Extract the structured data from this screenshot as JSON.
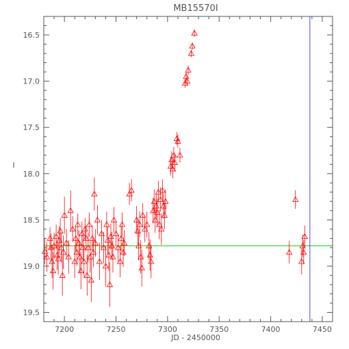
{
  "chart_data": {
    "type": "scatter",
    "title": "MB15570I",
    "xlabel": "JD - 2450000",
    "ylabel": "I",
    "xlim": [
      7180,
      7460
    ],
    "ylim": [
      19.6,
      16.3
    ],
    "y_inverted": true,
    "x_ticks": [
      7200,
      7250,
      7300,
      7350,
      7400,
      7450
    ],
    "y_ticks": [
      16.5,
      17.0,
      17.5,
      18.0,
      18.5,
      19.0,
      19.5
    ],
    "baseline_I": 18.78,
    "vertical_marker_jd": 7438,
    "marker": "triangle",
    "colors": {
      "points": "#ff0000",
      "baseline": "#00cc00",
      "vertical_marker": "#4444ff",
      "axes": "#555555"
    },
    "points": [
      [
        7181,
        18.84,
        0.14
      ],
      [
        7183,
        18.9,
        0.16
      ],
      [
        7186,
        18.7,
        0.12
      ],
      [
        7187,
        18.8,
        0.15
      ],
      [
        7188,
        18.95,
        0.18
      ],
      [
        7189,
        19.05,
        0.2
      ],
      [
        7190,
        18.78,
        0.14
      ],
      [
        7192,
        18.68,
        0.13
      ],
      [
        7193,
        18.88,
        0.16
      ],
      [
        7194,
        18.92,
        0.17
      ],
      [
        7195,
        18.72,
        0.15
      ],
      [
        7196,
        18.62,
        0.14
      ],
      [
        7197,
        18.8,
        0.16
      ],
      [
        7198,
        19.1,
        0.22
      ],
      [
        7199,
        18.85,
        0.18
      ],
      [
        7200,
        18.45,
        0.2
      ],
      [
        7202,
        18.75,
        0.15
      ],
      [
        7204,
        18.9,
        0.18
      ],
      [
        7206,
        18.4,
        0.22
      ],
      [
        7208,
        18.6,
        0.14
      ],
      [
        7210,
        18.95,
        0.18
      ],
      [
        7211,
        18.7,
        0.13
      ],
      [
        7212,
        18.85,
        0.15
      ],
      [
        7213,
        18.55,
        0.12
      ],
      [
        7214,
        18.75,
        0.14
      ],
      [
        7215,
        18.9,
        0.17
      ],
      [
        7216,
        19.05,
        0.2
      ],
      [
        7217,
        18.65,
        0.13
      ],
      [
        7218,
        18.8,
        0.15
      ],
      [
        7219,
        18.95,
        0.18
      ],
      [
        7220,
        18.6,
        0.12
      ],
      [
        7221,
        18.7,
        0.14
      ],
      [
        7222,
        19.1,
        0.22
      ],
      [
        7223,
        18.8,
        0.16
      ],
      [
        7224,
        18.55,
        0.13
      ],
      [
        7225,
        18.9,
        0.17
      ],
      [
        7226,
        19.15,
        0.24
      ],
      [
        7227,
        18.7,
        0.14
      ],
      [
        7228,
        18.85,
        0.16
      ],
      [
        7229,
        18.22,
        0.18
      ],
      [
        7230,
        18.75,
        0.15
      ],
      [
        7232,
        18.5,
        0.16
      ],
      [
        7234,
        18.95,
        0.2
      ],
      [
        7236,
        18.65,
        0.15
      ],
      [
        7238,
        18.8,
        0.17
      ],
      [
        7240,
        19.0,
        0.22
      ],
      [
        7241,
        18.55,
        0.14
      ],
      [
        7242,
        18.72,
        0.15
      ],
      [
        7243,
        18.88,
        0.17
      ],
      [
        7244,
        19.2,
        0.24
      ],
      [
        7245,
        18.68,
        0.14
      ],
      [
        7246,
        18.78,
        0.15
      ],
      [
        7247,
        18.9,
        0.17
      ],
      [
        7248,
        18.5,
        0.14
      ],
      [
        7250,
        18.65,
        0.13
      ],
      [
        7252,
        18.8,
        0.15
      ],
      [
        7254,
        18.95,
        0.17
      ],
      [
        7255,
        18.7,
        0.14
      ],
      [
        7256,
        18.55,
        0.13
      ],
      [
        7257,
        18.85,
        0.16
      ],
      [
        7258,
        18.75,
        0.14
      ],
      [
        7263,
        18.22,
        0.12
      ],
      [
        7265,
        18.18,
        0.12
      ],
      [
        7270,
        18.5,
        0.15
      ],
      [
        7271,
        18.62,
        0.14
      ],
      [
        7272,
        18.78,
        0.16
      ],
      [
        7273,
        18.55,
        0.14
      ],
      [
        7274,
        18.9,
        0.18
      ],
      [
        7275,
        19.02,
        0.2
      ],
      [
        7276,
        18.45,
        0.13
      ],
      [
        7278,
        18.6,
        0.14
      ],
      [
        7280,
        18.55,
        0.14
      ],
      [
        7282,
        18.78,
        0.15
      ],
      [
        7283,
        18.88,
        0.17
      ],
      [
        7284,
        18.95,
        0.18
      ],
      [
        7286,
        18.4,
        0.14
      ],
      [
        7287,
        18.3,
        0.13
      ],
      [
        7288,
        18.5,
        0.14
      ],
      [
        7289,
        18.35,
        0.13
      ],
      [
        7290,
        18.42,
        0.15
      ],
      [
        7291,
        18.2,
        0.12
      ],
      [
        7292,
        18.55,
        0.16
      ],
      [
        7293,
        18.28,
        0.13
      ],
      [
        7294,
        18.6,
        0.17
      ],
      [
        7295,
        18.18,
        0.12
      ],
      [
        7296,
        18.35,
        0.14
      ],
      [
        7297,
        18.45,
        0.15
      ],
      [
        7298,
        18.3,
        0.13
      ],
      [
        7303,
        17.92,
        0.1
      ],
      [
        7304,
        17.85,
        0.09
      ],
      [
        7305,
        17.95,
        0.1
      ],
      [
        7306,
        17.8,
        0.09
      ],
      [
        7307,
        17.88,
        0.1
      ],
      [
        7309,
        17.62,
        0.07
      ],
      [
        7310,
        17.65,
        0.07
      ],
      [
        7312,
        17.8,
        0.08
      ],
      [
        7317,
        17.02,
        0.05
      ],
      [
        7318,
        16.95,
        0.05
      ],
      [
        7319,
        17.0,
        0.05
      ],
      [
        7320,
        16.88,
        0.05
      ],
      [
        7323,
        16.7,
        0.04
      ],
      [
        7324,
        16.62,
        0.04
      ],
      [
        7326,
        16.48,
        0.04
      ],
      [
        7418,
        18.85,
        0.12
      ],
      [
        7424,
        18.28,
        0.1
      ],
      [
        7430,
        18.95,
        0.14
      ],
      [
        7431,
        18.78,
        0.12
      ],
      [
        7432,
        18.85,
        0.13
      ],
      [
        7433,
        18.68,
        0.12
      ]
    ]
  }
}
